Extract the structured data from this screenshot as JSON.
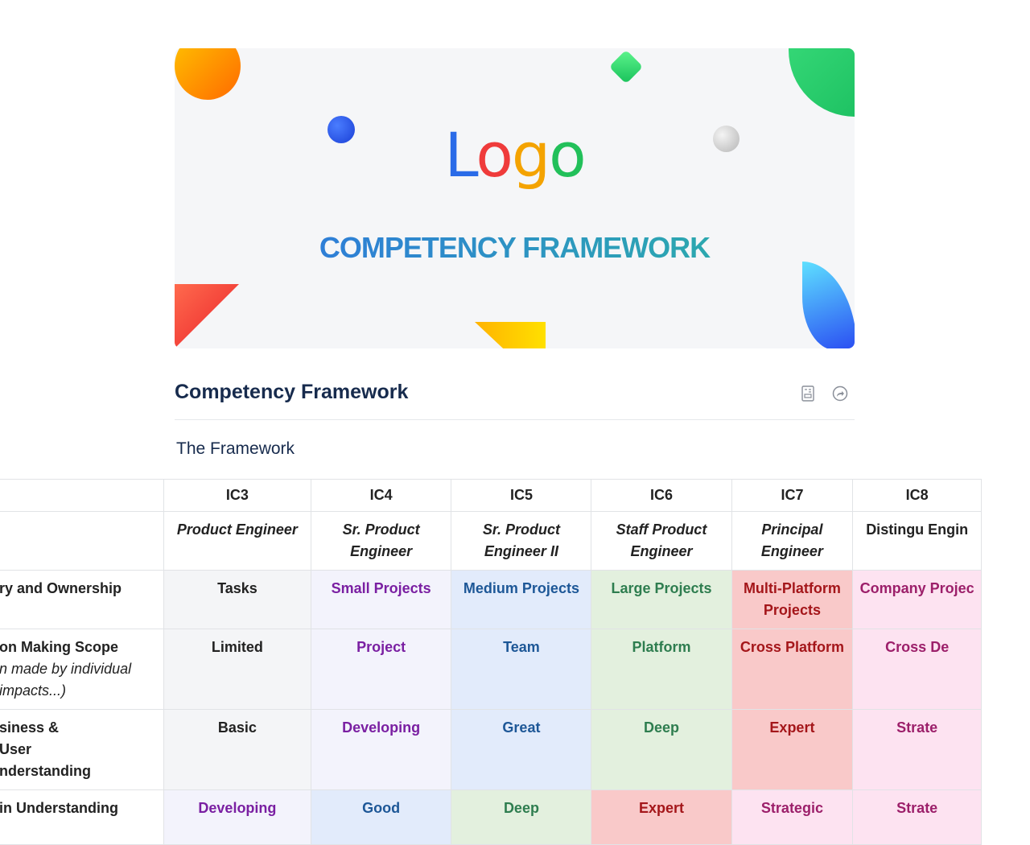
{
  "banner": {
    "logo": "Logo",
    "subtitle": "COMPETENCY FRAMEWORK"
  },
  "page": {
    "title": "Competency Framework",
    "section": "The Framework",
    "icons": [
      "page-info-icon",
      "share-icon"
    ]
  },
  "table": {
    "levels": [
      "IC3",
      "IC4",
      "IC5",
      "IC6",
      "IC7",
      "IC8"
    ],
    "titles": [
      "Product Engineer",
      "Sr. Product Engineer",
      "Sr. Product Engineer II",
      "Staff Product Engineer",
      "Principal Engineer",
      "Distingu Engin"
    ],
    "rows": [
      {
        "label": "ry and Ownership",
        "sub": "",
        "cells": [
          "Tasks",
          "Small Projects",
          "Medium Projects",
          "Large Projects",
          "Multi-Platform Projects",
          "Company Projec"
        ]
      },
      {
        "label": "on Making Scope",
        "sub": "n made by individual impacts...)",
        "cells": [
          "Limited",
          "Project",
          "Team",
          "Platform",
          "Cross Platform",
          "Cross De"
        ]
      },
      {
        "label": "siness & User nderstanding",
        "sub": "",
        "cells": [
          "Basic",
          "Developing",
          "Great",
          "Deep",
          "Expert",
          "Strate"
        ]
      },
      {
        "label": "in Understanding",
        "sub": "",
        "cells": [
          "Developing",
          "Good",
          "Deep",
          "Expert",
          "Strategic",
          "Strate"
        ]
      }
    ]
  },
  "colors": {
    "gray": "#f4f5f7",
    "lavender": "#f3f3fc",
    "blue": "#e2ebfb",
    "green": "#e3f0de",
    "red": "#f9c9c9",
    "pink": "#fde3f1"
  }
}
